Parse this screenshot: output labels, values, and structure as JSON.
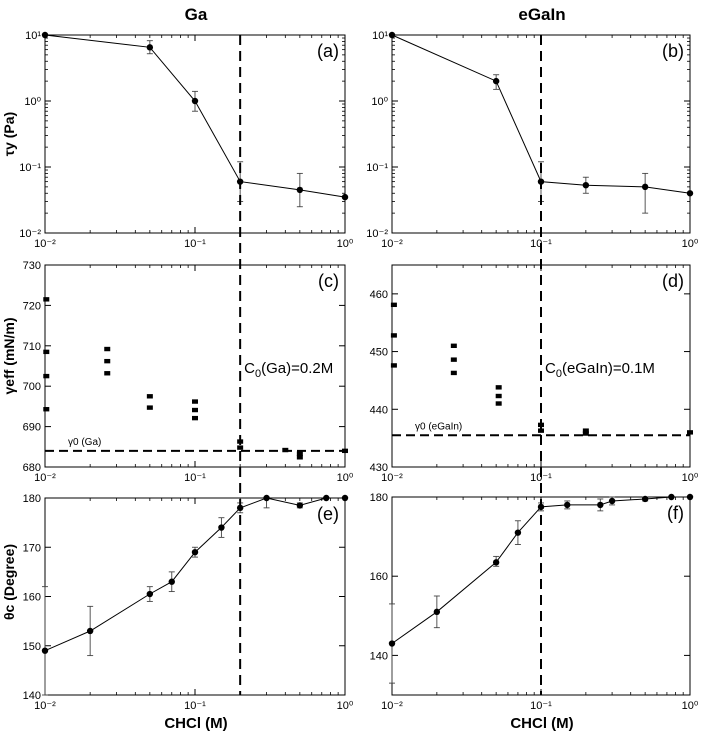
{
  "column_titles": [
    "Ga",
    "eGaIn"
  ],
  "shared_labels": {
    "ylabel_row1": "τy (Pa)",
    "ylabel_row2": "γeff (mN/m)",
    "ylabel_row3": "θc (Degree)",
    "xlabel": "CHCl (M)"
  },
  "colors": {
    "ink": "#000000",
    "background": "#ffffff"
  },
  "chart_data": [
    {
      "id": "a",
      "panel_label": "(a)",
      "type": "line",
      "xscale": "log",
      "yscale": "log",
      "xlim": [
        0.01,
        1
      ],
      "ylim": [
        0.01,
        10
      ],
      "xticks": [
        {
          "v": 0.01,
          "l": "10⁻²"
        },
        {
          "v": 0.1,
          "l": "10⁻¹"
        },
        {
          "v": 1,
          "l": "10⁰"
        }
      ],
      "yticks": [
        {
          "v": 0.01,
          "l": "10⁻²"
        },
        {
          "v": 0.1,
          "l": "10⁻¹"
        },
        {
          "v": 1,
          "l": "10⁰"
        },
        {
          "v": 10,
          "l": "10¹"
        }
      ],
      "vline": 0.2,
      "hline": null,
      "hline_label": "",
      "annotation": "",
      "series": [
        {
          "marker": "circle",
          "connected": true,
          "points": [
            {
              "x": 0.01,
              "y": 10,
              "lo": 10,
              "hi": 10
            },
            {
              "x": 0.05,
              "y": 6.5,
              "lo": 5.2,
              "hi": 8.2
            },
            {
              "x": 0.1,
              "y": 1.0,
              "lo": 0.7,
              "hi": 1.4
            },
            {
              "x": 0.2,
              "y": 0.06,
              "lo": 0.03,
              "hi": 0.12
            },
            {
              "x": 0.5,
              "y": 0.045,
              "lo": 0.025,
              "hi": 0.08
            },
            {
              "x": 1.0,
              "y": 0.035,
              "lo": 0.035,
              "hi": 0.035
            }
          ]
        }
      ]
    },
    {
      "id": "b",
      "panel_label": "(b)",
      "type": "line",
      "xscale": "log",
      "yscale": "log",
      "xlim": [
        0.01,
        1
      ],
      "ylim": [
        0.01,
        10
      ],
      "xticks": [
        {
          "v": 0.01,
          "l": "10⁻²"
        },
        {
          "v": 0.1,
          "l": "10⁻¹"
        },
        {
          "v": 1,
          "l": "10⁰"
        }
      ],
      "yticks": [
        {
          "v": 0.01,
          "l": "10⁻²"
        },
        {
          "v": 0.1,
          "l": "10⁻¹"
        },
        {
          "v": 1,
          "l": "10⁰"
        },
        {
          "v": 10,
          "l": "10¹"
        }
      ],
      "vline": 0.1,
      "hline": null,
      "hline_label": "",
      "annotation": "",
      "series": [
        {
          "marker": "circle",
          "connected": true,
          "points": [
            {
              "x": 0.01,
              "y": 10,
              "lo": 10,
              "hi": 10
            },
            {
              "x": 0.05,
              "y": 2.0,
              "lo": 1.5,
              "hi": 2.5
            },
            {
              "x": 0.1,
              "y": 0.06,
              "lo": 0.03,
              "hi": 0.12
            },
            {
              "x": 0.2,
              "y": 0.053,
              "lo": 0.04,
              "hi": 0.07
            },
            {
              "x": 0.5,
              "y": 0.05,
              "lo": 0.02,
              "hi": 0.08
            },
            {
              "x": 1.0,
              "y": 0.04,
              "lo": 0.04,
              "hi": 0.04
            }
          ]
        }
      ]
    },
    {
      "id": "c",
      "panel_label": "(c)",
      "type": "scatter",
      "xscale": "log",
      "yscale": "linear",
      "xlim": [
        0.01,
        1
      ],
      "ylim": [
        680,
        730
      ],
      "xticks": [
        {
          "v": 0.01,
          "l": "10⁻²"
        },
        {
          "v": 0.1,
          "l": "10⁻¹"
        },
        {
          "v": 1,
          "l": "10⁰"
        }
      ],
      "yticks": [
        {
          "v": 680,
          "l": "680"
        },
        {
          "v": 690,
          "l": "690"
        },
        {
          "v": 700,
          "l": "700"
        },
        {
          "v": 710,
          "l": "710"
        },
        {
          "v": 720,
          "l": "720"
        },
        {
          "v": 730,
          "l": "730"
        }
      ],
      "vline": 0.2,
      "hline": 684,
      "hline_label": "γ0 (Ga)",
      "annotation": "C0(Ga)=0.2M",
      "series": [
        {
          "marker": "square",
          "connected": false,
          "points": [
            {
              "x": 0.0102,
              "y": 721.5
            },
            {
              "x": 0.0102,
              "y": 708.5
            },
            {
              "x": 0.0102,
              "y": 702.5
            },
            {
              "x": 0.0102,
              "y": 694.3
            },
            {
              "x": 0.026,
              "y": 709.2
            },
            {
              "x": 0.026,
              "y": 706.2
            },
            {
              "x": 0.026,
              "y": 703.2
            },
            {
              "x": 0.05,
              "y": 697.5
            },
            {
              "x": 0.05,
              "y": 694.7
            },
            {
              "x": 0.1,
              "y": 696.2
            },
            {
              "x": 0.1,
              "y": 694.1
            },
            {
              "x": 0.1,
              "y": 692.1
            },
            {
              "x": 0.2,
              "y": 686.3
            },
            {
              "x": 0.2,
              "y": 684.8
            },
            {
              "x": 0.4,
              "y": 684.2
            },
            {
              "x": 0.5,
              "y": 683.3
            },
            {
              "x": 0.5,
              "y": 682.4
            },
            {
              "x": 1.0,
              "y": 684
            }
          ]
        }
      ]
    },
    {
      "id": "d",
      "panel_label": "(d)",
      "type": "scatter",
      "xscale": "log",
      "yscale": "linear",
      "xlim": [
        0.01,
        1
      ],
      "ylim": [
        430,
        465
      ],
      "xticks": [
        {
          "v": 0.01,
          "l": "10⁻²"
        },
        {
          "v": 0.1,
          "l": "10⁻¹"
        },
        {
          "v": 1,
          "l": "10⁰"
        }
      ],
      "yticks": [
        {
          "v": 430,
          "l": "430"
        },
        {
          "v": 440,
          "l": "440"
        },
        {
          "v": 450,
          "l": "450"
        },
        {
          "v": 460,
          "l": "460"
        }
      ],
      "vline": 0.1,
      "hline": 435.5,
      "hline_label": "γ0 (eGaIn)",
      "annotation": "C0(eGaIn)=0.1M",
      "series": [
        {
          "marker": "square",
          "connected": false,
          "points": [
            {
              "x": 0.0103,
              "y": 458.1
            },
            {
              "x": 0.0103,
              "y": 452.8
            },
            {
              "x": 0.0103,
              "y": 447.6
            },
            {
              "x": 0.026,
              "y": 451.0
            },
            {
              "x": 0.026,
              "y": 448.6
            },
            {
              "x": 0.026,
              "y": 446.3
            },
            {
              "x": 0.052,
              "y": 443.8
            },
            {
              "x": 0.052,
              "y": 442.3
            },
            {
              "x": 0.052,
              "y": 441.0
            },
            {
              "x": 0.1,
              "y": 437.3
            },
            {
              "x": 0.1,
              "y": 436.3
            },
            {
              "x": 0.2,
              "y": 436.3
            },
            {
              "x": 0.2,
              "y": 435.8
            },
            {
              "x": 1.0,
              "y": 436
            }
          ]
        }
      ]
    },
    {
      "id": "e",
      "panel_label": "(e)",
      "type": "line",
      "xscale": "log",
      "yscale": "linear",
      "xlim": [
        0.01,
        1
      ],
      "ylim": [
        140,
        180
      ],
      "xticks": [
        {
          "v": 0.01,
          "l": "10⁻²"
        },
        {
          "v": 0.1,
          "l": "10⁻¹"
        },
        {
          "v": 1,
          "l": "10⁰"
        }
      ],
      "yticks": [
        {
          "v": 140,
          "l": "140"
        },
        {
          "v": 150,
          "l": "150"
        },
        {
          "v": 160,
          "l": "160"
        },
        {
          "v": 170,
          "l": "170"
        },
        {
          "v": 180,
          "l": "180"
        }
      ],
      "vline": 0.2,
      "hline": null,
      "hline_label": "",
      "annotation": "",
      "series": [
        {
          "marker": "circle",
          "connected": true,
          "points": [
            {
              "x": 0.01,
              "y": 149,
              "lo": 140,
              "hi": 162
            },
            {
              "x": 0.02,
              "y": 153,
              "lo": 148,
              "hi": 158
            },
            {
              "x": 0.05,
              "y": 160.5,
              "lo": 159,
              "hi": 162
            },
            {
              "x": 0.07,
              "y": 163,
              "lo": 161,
              "hi": 165
            },
            {
              "x": 0.1,
              "y": 169,
              "lo": 168,
              "hi": 170
            },
            {
              "x": 0.15,
              "y": 174,
              "lo": 172,
              "hi": 176
            },
            {
              "x": 0.2,
              "y": 178,
              "lo": 177,
              "hi": 179
            },
            {
              "x": 0.3,
              "y": 180,
              "lo": 178,
              "hi": 181
            },
            {
              "x": 0.5,
              "y": 178.5,
              "lo": 178,
              "hi": 179
            },
            {
              "x": 0.75,
              "y": 180,
              "lo": 180,
              "hi": 180
            },
            {
              "x": 1.0,
              "y": 180,
              "lo": 180,
              "hi": 180
            }
          ]
        }
      ]
    },
    {
      "id": "f",
      "panel_label": "(f)",
      "type": "line",
      "xscale": "log",
      "yscale": "linear",
      "xlim": [
        0.01,
        1
      ],
      "ylim": [
        130,
        180
      ],
      "xticks": [
        {
          "v": 0.01,
          "l": "10⁻²"
        },
        {
          "v": 0.1,
          "l": "10⁻¹"
        },
        {
          "v": 1,
          "l": "10⁰"
        }
      ],
      "yticks": [
        {
          "v": 140,
          "l": "140"
        },
        {
          "v": 160,
          "l": "160"
        },
        {
          "v": 180,
          "l": "180"
        }
      ],
      "vline": 0.1,
      "hline": null,
      "hline_label": "",
      "annotation": "",
      "series": [
        {
          "marker": "circle",
          "connected": true,
          "points": [
            {
              "x": 0.01,
              "y": 143,
              "lo": 133,
              "hi": 153
            },
            {
              "x": 0.02,
              "y": 151,
              "lo": 147,
              "hi": 155
            },
            {
              "x": 0.05,
              "y": 163.5,
              "lo": 162.5,
              "hi": 165
            },
            {
              "x": 0.07,
              "y": 171,
              "lo": 168,
              "hi": 174
            },
            {
              "x": 0.1,
              "y": 177.5,
              "lo": 176.5,
              "hi": 178.5
            },
            {
              "x": 0.15,
              "y": 178,
              "lo": 177,
              "hi": 179
            },
            {
              "x": 0.25,
              "y": 178,
              "lo": 176.5,
              "hi": 179.5
            },
            {
              "x": 0.3,
              "y": 179,
              "lo": 178,
              "hi": 180
            },
            {
              "x": 0.5,
              "y": 179.5,
              "lo": 179,
              "hi": 180
            },
            {
              "x": 0.75,
              "y": 180,
              "lo": 180,
              "hi": 180
            },
            {
              "x": 1.0,
              "y": 180,
              "lo": 180,
              "hi": 180
            }
          ]
        }
      ]
    }
  ]
}
